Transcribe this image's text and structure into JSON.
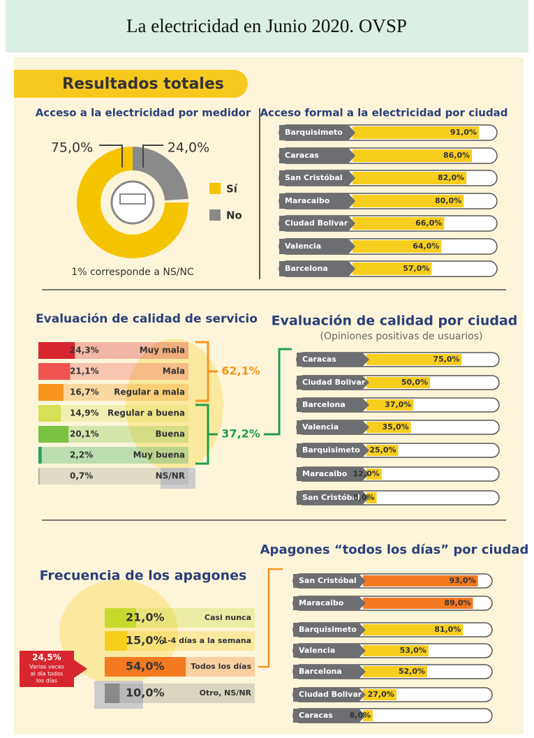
{
  "header": {
    "title": "La electricidad en Junio 2020. OVSP",
    "banner": "Resultados totales"
  },
  "chart_data": [
    {
      "type": "pie",
      "title": "Acceso a la electricidad por medidor",
      "categories": [
        "Sí",
        "No"
      ],
      "values": [
        75,
        24
      ],
      "value_labels": [
        "75,0%",
        "24,0%"
      ],
      "colors": [
        "#f5c400",
        "#8a8a8a"
      ],
      "note": "1% corresponde a NS/NC"
    },
    {
      "type": "bar",
      "title": "Acceso formal a la electricidad por ciudad",
      "categories": [
        "Barquisimeto",
        "Caracas",
        "San Cristóbal",
        "Maracaibo",
        "Ciudad Bolivar",
        "Valencia",
        "Barcelona"
      ],
      "values": [
        91,
        86,
        82,
        80,
        66,
        64,
        57
      ],
      "value_labels": [
        "91,0%",
        "86,0%",
        "82,0%",
        "80,0%",
        "66,0%",
        "64,0%",
        "57,0%"
      ],
      "colors": [
        "#f7cd1e",
        "#f7cd1e",
        "#f7cd1e",
        "#f7cd1e",
        "#f7cd1e",
        "#f7cd1e",
        "#f7cd1e"
      ],
      "xlim": [
        0,
        100
      ]
    },
    {
      "type": "bar",
      "title": "Evaluación de calidad de servicio",
      "categories": [
        "Muy mala",
        "Mala",
        "Regular a mala",
        "Regular a buena",
        "Buena",
        "Muy buena",
        "NS/NR"
      ],
      "values": [
        24.3,
        21.1,
        16.7,
        14.9,
        20.1,
        2.2,
        0.7
      ],
      "value_labels": [
        "24,3%",
        "21,1%",
        "16,7%",
        "14,9%",
        "20,1%",
        "2,2%",
        "0,7%"
      ],
      "colors": [
        "#d7262e",
        "#ef5350",
        "#f7941d",
        "#d4e157",
        "#7cc242",
        "#27a35a",
        "#9e9e9e"
      ],
      "xlim": [
        0,
        100
      ],
      "annotations": [
        {
          "label": "62,1%",
          "color": "#f7941d"
        },
        {
          "label": "37,2%",
          "color": "#1f9e4a"
        }
      ]
    },
    {
      "type": "bar",
      "title": "Evaluación de calidad por ciudad",
      "subtitle": "(Opiniones positivas de usuarios)",
      "categories": [
        "Caracas",
        "Ciudad Bolivar",
        "Barcelona",
        "Valencia",
        "Barquisimeto",
        "Maracaibo",
        "San Cristóbal"
      ],
      "values": [
        75,
        50,
        37,
        35,
        25,
        12,
        8
      ],
      "value_labels": [
        "75,0%",
        "50,0%",
        "37,0%",
        "35,0%",
        "25,0%",
        "12,0%",
        "8,0%"
      ],
      "colors": [
        "#f7cd1e",
        "#f7cd1e",
        "#f7cd1e",
        "#f7cd1e",
        "#f7cd1e",
        "#f7cd1e",
        "#f7cd1e"
      ],
      "xlim": [
        0,
        100
      ]
    },
    {
      "type": "bar",
      "title": "Frecuencia de los apagones",
      "categories": [
        "Casi nunca",
        "1-4 días a la semana",
        "Todos los días",
        "Otro, NS/NR"
      ],
      "values": [
        21,
        15,
        54,
        10
      ],
      "value_labels": [
        "21,0%",
        "15,0%",
        "54,0%",
        "10,0%"
      ],
      "colors": [
        "#c8d92e",
        "#f7cd1e",
        "#f47920",
        "#8a8a8a"
      ],
      "xlim": [
        0,
        100
      ],
      "callout": {
        "label": "24,5%",
        "lines": [
          "Varias veces",
          "al día todos",
          "los días"
        ]
      }
    },
    {
      "type": "bar",
      "title": "Apagones “todos los días” por ciudad",
      "categories": [
        "San Cristóbal",
        "Maracaibo",
        "Barquisimeto",
        "Valencia",
        "Barcelona",
        "Ciudad Bolivar",
        "Caracas"
      ],
      "values": [
        93,
        89,
        81,
        53,
        52,
        27,
        8
      ],
      "value_labels": [
        "93,0%",
        "89,0%",
        "81,0%",
        "53,0%",
        "52,0%",
        "27,0%",
        "8,0%"
      ],
      "colors": [
        "#f47920",
        "#f47920",
        "#f7cd1e",
        "#f7cd1e",
        "#f7cd1e",
        "#f7cd1e",
        "#f7cd1e"
      ],
      "xlim": [
        0,
        100
      ]
    }
  ]
}
